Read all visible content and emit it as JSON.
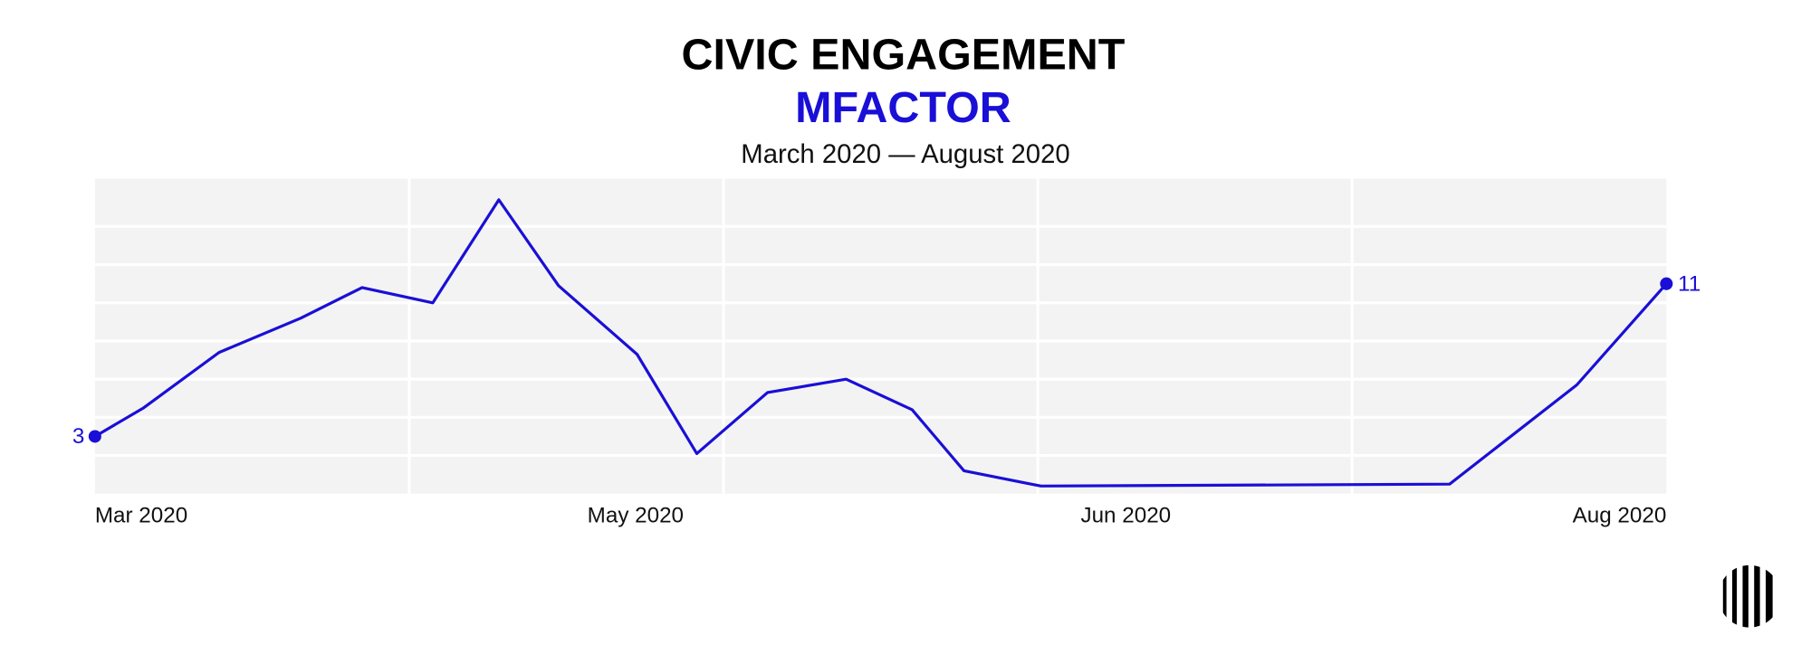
{
  "chart_data": {
    "type": "line",
    "title": "CIVIC ENGAGEMENT",
    "subtitle": "MFACTOR",
    "caption": "March 2020 — August 2020",
    "x": [
      0,
      3.1,
      7.9,
      13.1,
      17.0,
      21.5,
      25.7,
      29.5,
      34.5,
      38.3,
      42.8,
      47.8,
      52.0,
      55.3,
      60.2,
      86.2,
      94.3,
      100
    ],
    "values": [
      3,
      4.5,
      7.4,
      9.2,
      10.8,
      10,
      15.4,
      10.9,
      7.3,
      2.1,
      5.3,
      6,
      4.4,
      1.2,
      0.4,
      0.5,
      5.7,
      11
    ],
    "color": "#1a0fd6",
    "xlim": [
      0,
      100
    ],
    "xticks": [
      {
        "value": 0,
        "label": "Mar 2020"
      },
      {
        "value": 34.4,
        "label": "May 2020"
      },
      {
        "value": 65.6,
        "label": "Jun 2020"
      },
      {
        "value": 100,
        "label": "Aug 2020"
      }
    ],
    "xgrid": [
      20,
      40,
      60,
      80
    ],
    "ylim": [
      0,
      16.5
    ],
    "ygrid": [
      2,
      4,
      6,
      8,
      10,
      12,
      14
    ],
    "grid": true
  }
}
